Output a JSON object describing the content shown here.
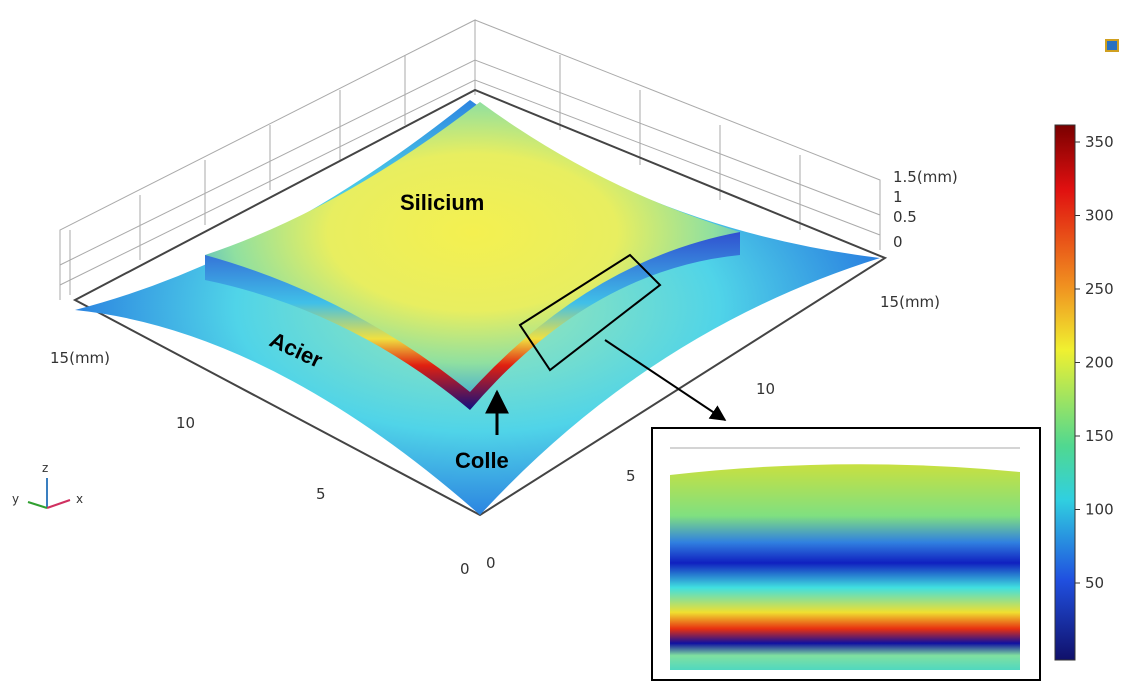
{
  "labels": {
    "silicon": "Silicium",
    "steel": "Acier",
    "glue": "Colle"
  },
  "z_axis": {
    "ticks": [
      "1.5",
      "1",
      "0.5",
      "0"
    ],
    "unit": "(mm)"
  },
  "y_axis": {
    "ticks": [
      "15",
      "10",
      "5",
      "0"
    ],
    "unit": "(mm)"
  },
  "x_axis": {
    "ticks": [
      "0",
      "5",
      "10",
      "15"
    ],
    "unit": "(mm)"
  },
  "triad": {
    "x": "x",
    "y": "y",
    "z": "z"
  },
  "colorbar": {
    "ticks": [
      350,
      300,
      250,
      200,
      150,
      100,
      50
    ]
  }
}
